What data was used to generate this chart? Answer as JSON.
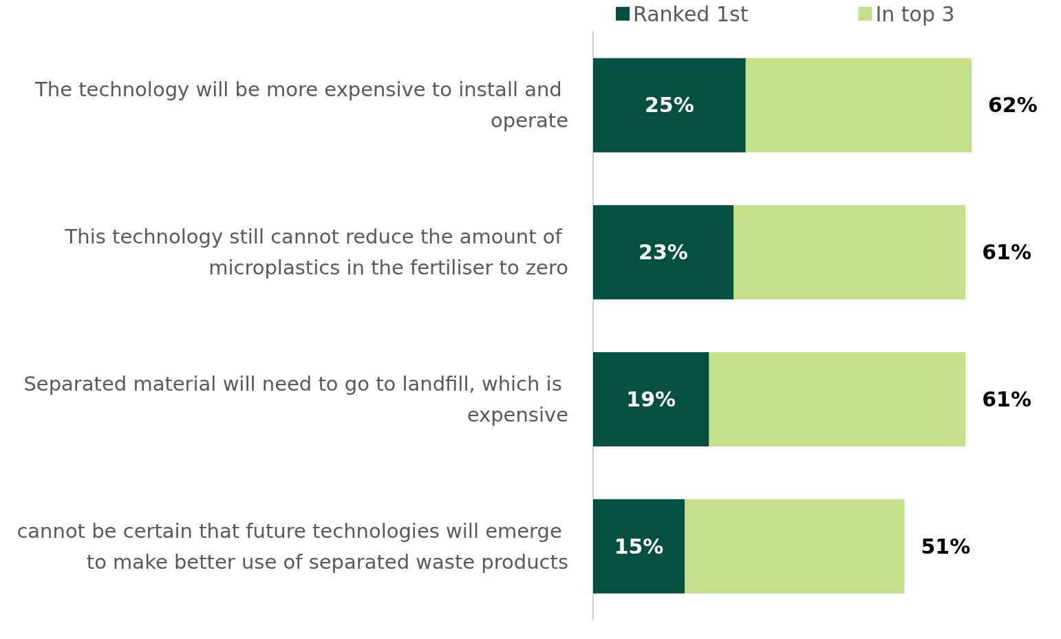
{
  "chart_data": {
    "type": "bar",
    "orientation": "horizontal",
    "stacked": true,
    "categories": [
      "The technology will be more expensive to install and operate",
      "This technology still cannot reduce the amount of microplastics in the fertiliser to zero",
      "Separated material will need to go to landfill, which is expensive",
      "cannot be certain that future technologies will emerge to make better use of separated waste products"
    ],
    "series": [
      {
        "name": "Ranked 1st",
        "color": "#03503f",
        "values": [
          25,
          23,
          19,
          15
        ],
        "value_labels": [
          "25%",
          "23%",
          "19%",
          "15%"
        ]
      },
      {
        "name": "In top 3",
        "color": "#c5e08a",
        "values": [
          37,
          38,
          42,
          36
        ]
      }
    ],
    "totals": [
      "62%",
      "61%",
      "61%",
      "51%"
    ],
    "legend": "top"
  }
}
